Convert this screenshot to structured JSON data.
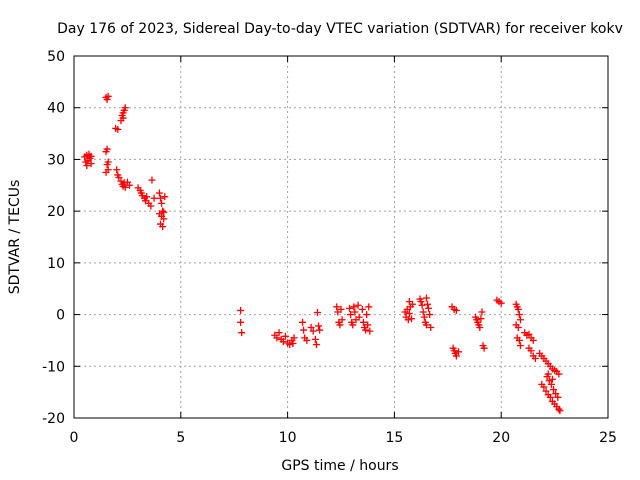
{
  "chart_data": {
    "type": "scatter",
    "title": "Day 176 of 2023, Sidereal Day-to-day VTEC variation (SDTVAR) for receiver kokv",
    "xlabel": "GPS time / hours",
    "ylabel": "SDTVAR / TECUs",
    "xlim": [
      0,
      25
    ],
    "ylim": [
      -20,
      50
    ],
    "xticks": [
      0,
      5,
      10,
      15,
      20,
      25
    ],
    "yticks": [
      -20,
      -10,
      0,
      10,
      20,
      30,
      40,
      50
    ],
    "grid": true,
    "marker": "+",
    "colors": {
      "series": "#ff0000",
      "grid": "#a0a0a0",
      "axis": "#000000"
    },
    "series": [
      {
        "name": "SDTVAR",
        "points": [
          [
            0.5,
            30.5
          ],
          [
            0.55,
            29.5
          ],
          [
            0.6,
            30.8
          ],
          [
            0.6,
            28.8
          ],
          [
            0.65,
            29.8
          ],
          [
            0.7,
            31.0
          ],
          [
            0.75,
            30.2
          ],
          [
            0.8,
            29.2
          ],
          [
            0.8,
            30.6
          ],
          [
            1.5,
            42.0
          ],
          [
            1.55,
            41.6
          ],
          [
            1.6,
            42.2
          ],
          [
            1.5,
            31.5
          ],
          [
            1.55,
            32.0
          ],
          [
            1.6,
            29.5
          ],
          [
            1.55,
            29.0
          ],
          [
            1.6,
            28.0
          ],
          [
            1.5,
            27.5
          ],
          [
            1.95,
            36.0
          ],
          [
            2.05,
            35.8
          ],
          [
            2.2,
            37.5
          ],
          [
            2.25,
            38.5
          ],
          [
            2.3,
            39.0
          ],
          [
            2.35,
            39.5
          ],
          [
            2.4,
            40.0
          ],
          [
            2.3,
            38.0
          ],
          [
            2.0,
            28.0
          ],
          [
            2.05,
            27.0
          ],
          [
            2.1,
            26.5
          ],
          [
            2.2,
            25.8
          ],
          [
            2.25,
            25.2
          ],
          [
            2.3,
            24.8
          ],
          [
            2.35,
            25.5
          ],
          [
            2.4,
            24.6
          ],
          [
            2.5,
            25.6
          ],
          [
            2.6,
            25.0
          ],
          [
            3.0,
            24.5
          ],
          [
            3.1,
            24.0
          ],
          [
            3.15,
            23.5
          ],
          [
            3.2,
            23.0
          ],
          [
            3.3,
            22.5
          ],
          [
            3.35,
            22.0
          ],
          [
            3.4,
            22.8
          ],
          [
            3.5,
            21.5
          ],
          [
            3.6,
            21.0
          ],
          [
            3.65,
            26.0
          ],
          [
            3.75,
            22.5
          ],
          [
            4.0,
            23.5
          ],
          [
            4.05,
            22.5
          ],
          [
            4.1,
            21.5
          ],
          [
            4.15,
            20.0
          ],
          [
            4.0,
            19.5
          ],
          [
            4.1,
            19.0
          ],
          [
            4.2,
            18.5
          ],
          [
            4.05,
            17.5
          ],
          [
            4.15,
            17.0
          ],
          [
            4.2,
            19.8
          ],
          [
            4.25,
            22.8
          ],
          [
            7.8,
            0.8
          ],
          [
            7.8,
            -1.5
          ],
          [
            7.85,
            -3.5
          ],
          [
            9.4,
            -4.0
          ],
          [
            9.5,
            -4.5
          ],
          [
            9.6,
            -3.5
          ],
          [
            9.7,
            -4.8
          ],
          [
            9.8,
            -5.2
          ],
          [
            9.9,
            -4.2
          ],
          [
            10.0,
            -5.5
          ],
          [
            10.1,
            -5.8
          ],
          [
            10.2,
            -5.0
          ],
          [
            10.3,
            -4.5
          ],
          [
            10.25,
            -5.6
          ],
          [
            10.7,
            -1.5
          ],
          [
            10.75,
            -3.0
          ],
          [
            10.8,
            -4.5
          ],
          [
            10.9,
            -5.0
          ],
          [
            11.1,
            -2.5
          ],
          [
            11.2,
            -3.2
          ],
          [
            11.3,
            -4.8
          ],
          [
            11.35,
            -5.8
          ],
          [
            11.4,
            0.4
          ],
          [
            11.45,
            -2.2
          ],
          [
            11.5,
            -3.0
          ],
          [
            12.3,
            1.5
          ],
          [
            12.35,
            0.5
          ],
          [
            12.4,
            -1.5
          ],
          [
            12.45,
            -2.0
          ],
          [
            12.5,
            1.0
          ],
          [
            12.55,
            -1.0
          ],
          [
            12.9,
            1.2
          ],
          [
            12.95,
            0.0
          ],
          [
            13.0,
            -1.5
          ],
          [
            13.05,
            -2.0
          ],
          [
            13.1,
            1.5
          ],
          [
            13.15,
            0.5
          ],
          [
            13.2,
            -1.0
          ],
          [
            13.3,
            1.8
          ],
          [
            13.35,
            -0.5
          ],
          [
            13.5,
            1.0
          ],
          [
            13.55,
            -1.5
          ],
          [
            13.6,
            -2.5
          ],
          [
            13.65,
            -3.0
          ],
          [
            13.7,
            0.0
          ],
          [
            13.75,
            -2.0
          ],
          [
            13.8,
            1.5
          ],
          [
            13.85,
            -3.2
          ],
          [
            15.5,
            0.5
          ],
          [
            15.55,
            -0.5
          ],
          [
            15.6,
            1.0
          ],
          [
            15.65,
            -1.0
          ],
          [
            15.7,
            0.2
          ],
          [
            15.75,
            1.5
          ],
          [
            15.8,
            -0.8
          ],
          [
            15.85,
            2.0
          ],
          [
            15.7,
            2.5
          ],
          [
            16.2,
            3.0
          ],
          [
            16.25,
            2.5
          ],
          [
            16.3,
            1.8
          ],
          [
            16.35,
            0.5
          ],
          [
            16.4,
            -0.5
          ],
          [
            16.45,
            -1.5
          ],
          [
            16.5,
            -2.0
          ],
          [
            16.55,
            2.0
          ],
          [
            16.6,
            1.2
          ],
          [
            16.65,
            0.0
          ],
          [
            16.7,
            -2.5
          ],
          [
            16.5,
            3.2
          ],
          [
            17.7,
            1.5
          ],
          [
            17.8,
            1.0
          ],
          [
            17.9,
            0.8
          ],
          [
            17.75,
            -6.5
          ],
          [
            17.8,
            -7.0
          ],
          [
            17.85,
            -7.5
          ],
          [
            17.9,
            -8.0
          ],
          [
            18.0,
            -7.2
          ],
          [
            18.8,
            -0.5
          ],
          [
            18.85,
            -1.0
          ],
          [
            18.9,
            -1.5
          ],
          [
            18.95,
            -2.0
          ],
          [
            19.0,
            -2.5
          ],
          [
            19.05,
            -0.8
          ],
          [
            19.1,
            0.5
          ],
          [
            19.15,
            -6.0
          ],
          [
            19.2,
            -6.5
          ],
          [
            19.8,
            2.8
          ],
          [
            19.9,
            2.5
          ],
          [
            20.0,
            2.2
          ],
          [
            20.7,
            2.0
          ],
          [
            20.75,
            1.5
          ],
          [
            20.8,
            1.0
          ],
          [
            20.85,
            0.0
          ],
          [
            20.9,
            -1.0
          ],
          [
            20.7,
            -2.0
          ],
          [
            20.8,
            -2.5
          ],
          [
            20.75,
            -4.5
          ],
          [
            20.85,
            -5.0
          ],
          [
            20.9,
            -6.0
          ],
          [
            21.1,
            -3.5
          ],
          [
            21.2,
            -4.0
          ],
          [
            21.3,
            -3.8
          ],
          [
            21.4,
            -4.5
          ],
          [
            21.5,
            -5.0
          ],
          [
            21.3,
            -6.5
          ],
          [
            21.4,
            -7.0
          ],
          [
            21.5,
            -8.0
          ],
          [
            21.6,
            -8.5
          ],
          [
            21.8,
            -7.5
          ],
          [
            21.9,
            -8.0
          ],
          [
            22.0,
            -8.5
          ],
          [
            22.1,
            -9.0
          ],
          [
            22.2,
            -9.5
          ],
          [
            22.3,
            -10.0
          ],
          [
            22.4,
            -10.5
          ],
          [
            22.5,
            -10.8
          ],
          [
            22.6,
            -11.0
          ],
          [
            22.7,
            -11.5
          ],
          [
            21.9,
            -13.5
          ],
          [
            22.0,
            -14.0
          ],
          [
            22.1,
            -14.8
          ],
          [
            22.2,
            -15.5
          ],
          [
            22.3,
            -16.0
          ],
          [
            22.4,
            -16.8
          ],
          [
            22.5,
            -17.3
          ],
          [
            22.6,
            -17.8
          ],
          [
            22.7,
            -18.3
          ],
          [
            22.75,
            -18.6
          ],
          [
            22.15,
            -12.0
          ],
          [
            22.25,
            -12.8
          ],
          [
            22.35,
            -13.5
          ],
          [
            22.45,
            -14.5
          ],
          [
            22.55,
            -15.3
          ],
          [
            22.65,
            -16.0
          ],
          [
            22.2,
            -11.5
          ],
          [
            22.4,
            -12.5
          ]
        ]
      }
    ]
  }
}
